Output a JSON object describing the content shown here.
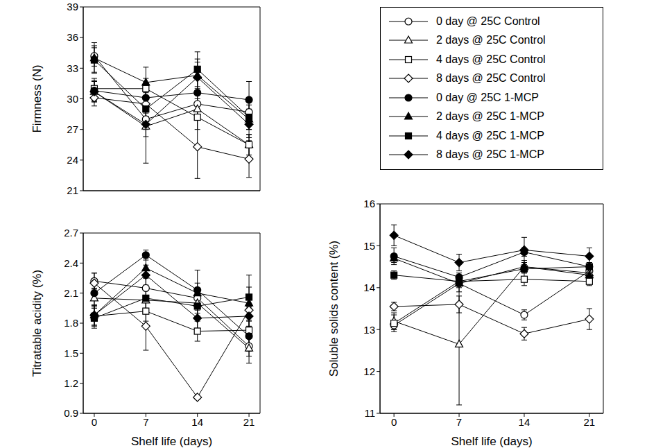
{
  "chart_data": [
    {
      "type": "line",
      "y_label": "Firmness (N)",
      "x": [
        0,
        7,
        14,
        21
      ],
      "xlim": [
        -1.5,
        22.5
      ],
      "xticks": [
        0,
        7,
        14,
        21
      ],
      "ylim": [
        21,
        39
      ],
      "yticks": [
        21,
        24,
        27,
        30,
        33,
        36,
        39
      ],
      "tick_labels": "y",
      "series": [
        {
          "name": "0 day @ 25C Control",
          "color": "#000000",
          "marker": "open_circle",
          "values": [
            34.2,
            28.0,
            29.5,
            28.7
          ],
          "errors": [
            1.0,
            1.0,
            1.5,
            1.0
          ]
        },
        {
          "name": "2 days @ 25C Control",
          "color": "#000000",
          "marker": "open_triangle",
          "values": [
            30.7,
            27.3,
            29.0,
            25.5
          ],
          "errors": [
            1.0,
            1.0,
            1.0,
            1.0
          ]
        },
        {
          "name": "4 days @ 25C Control",
          "color": "#000000",
          "marker": "open_square",
          "values": [
            31.0,
            31.0,
            28.2,
            25.5
          ],
          "errors": [
            1.0,
            1.0,
            1.2,
            1.0
          ]
        },
        {
          "name": "8 days @ 25C Control",
          "color": "#000000",
          "marker": "open_diamond",
          "values": [
            30.1,
            29.5,
            25.3,
            24.1
          ],
          "errors": [
            0.8,
            1.2,
            3.1,
            1.8
          ]
        },
        {
          "name": "0 day @ 25C 1-MCP",
          "color": "#000000",
          "marker": "filled_circle",
          "values": [
            30.8,
            30.1,
            30.6,
            29.9
          ],
          "errors": [
            1.0,
            1.5,
            1.3,
            1.8
          ]
        },
        {
          "name": "2 days @ 25C 1-MCP",
          "color": "#000000",
          "marker": "filled_triangle",
          "values": [
            34.0,
            31.6,
            32.3,
            28.0
          ],
          "errors": [
            1.5,
            1.5,
            1.6,
            1.0
          ]
        },
        {
          "name": "4 days @ 25C 1-MCP",
          "color": "#000000",
          "marker": "filled_square",
          "values": [
            33.8,
            29.0,
            32.9,
            28.2
          ],
          "errors": [
            1.2,
            1.6,
            1.7,
            1.2
          ]
        },
        {
          "name": "8 days @ 25C 1-MCP",
          "color": "#000000",
          "marker": "filled_diamond",
          "values": [
            30.7,
            27.5,
            32.1,
            27.5
          ],
          "errors": [
            1.0,
            3.8,
            1.5,
            1.3
          ]
        }
      ]
    },
    {
      "type": "line",
      "y_label": "Titratable acidity (%)",
      "x_label": "Shelf life (days)",
      "x": [
        0,
        7,
        14,
        21
      ],
      "xlim": [
        -1.5,
        22.5
      ],
      "xticks": [
        0,
        7,
        14,
        21
      ],
      "ylim": [
        0.9,
        2.7
      ],
      "yticks": [
        0.9,
        1.2,
        1.5,
        1.8,
        2.1,
        2.4,
        2.7
      ],
      "series": [
        {
          "name": "0 day @ 25C Control",
          "color": "#000000",
          "marker": "open_circle",
          "values": [
            2.22,
            2.15,
            2.05,
            1.57
          ],
          "errors": [
            0.08,
            0.1,
            0.1,
            0.1
          ]
        },
        {
          "name": "2 days @ 25C Control",
          "color": "#000000",
          "marker": "open_triangle",
          "values": [
            2.05,
            2.03,
            2.0,
            1.55
          ],
          "errors": [
            0.1,
            0.1,
            0.1,
            0.15
          ]
        },
        {
          "name": "4 days @ 25C Control",
          "color": "#000000",
          "marker": "open_square",
          "values": [
            1.87,
            1.92,
            1.72,
            1.73
          ],
          "errors": [
            0.1,
            0.1,
            0.1,
            0.15
          ]
        },
        {
          "name": "8 days @ 25C Control",
          "color": "#000000",
          "marker": "open_diamond",
          "values": [
            2.2,
            1.77,
            1.06,
            1.93
          ],
          "errors": [
            0.1,
            0.24,
            0.02,
            0.1
          ]
        },
        {
          "name": "0 day @ 25C 1-MCP",
          "color": "#000000",
          "marker": "filled_circle",
          "values": [
            2.1,
            2.48,
            2.13,
            1.67
          ],
          "errors": [
            0.12,
            0.05,
            0.2,
            0.15
          ]
        },
        {
          "name": "2 days @ 25C 1-MCP",
          "color": "#000000",
          "marker": "filled_triangle",
          "values": [
            1.88,
            2.35,
            2.1,
            2.0
          ],
          "errors": [
            0.1,
            0.1,
            0.1,
            0.28
          ]
        },
        {
          "name": "4 days @ 25C 1-MCP",
          "color": "#000000",
          "marker": "filled_square",
          "values": [
            1.85,
            2.05,
            1.97,
            2.06
          ],
          "errors": [
            0.1,
            0.1,
            0.1,
            0.1
          ]
        },
        {
          "name": "8 days @ 25C 1-MCP",
          "color": "#000000",
          "marker": "filled_diamond",
          "values": [
            1.88,
            2.28,
            1.85,
            1.87
          ],
          "errors": [
            0.1,
            0.1,
            0.1,
            0.1
          ]
        }
      ]
    },
    {
      "type": "line",
      "y_label": "Soluble solids content (%)",
      "x_label": "Shelf life (days)",
      "x": [
        0,
        7,
        14,
        21
      ],
      "xlim": [
        -1.5,
        22.5
      ],
      "xticks": [
        0,
        7,
        14,
        21
      ],
      "ylim": [
        11,
        16
      ],
      "yticks": [
        11,
        12,
        13,
        14,
        15,
        16
      ],
      "series": [
        {
          "name": "0 day @ 25C Control",
          "color": "#000000",
          "marker": "open_circle",
          "values": [
            13.1,
            14.1,
            13.35,
            14.4
          ],
          "errors": [
            0.1,
            0.1,
            0.12,
            0.1
          ]
        },
        {
          "name": "2 days @ 25C Control",
          "color": "#000000",
          "marker": "open_triangle",
          "values": [
            13.2,
            12.65,
            14.5,
            14.35
          ],
          "errors": [
            0.2,
            1.45,
            0.15,
            0.15
          ]
        },
        {
          "name": "4 days @ 25C Control",
          "color": "#000000",
          "marker": "open_square",
          "values": [
            13.15,
            14.15,
            14.2,
            14.15
          ],
          "errors": [
            0.2,
            0.1,
            0.15,
            0.1
          ]
        },
        {
          "name": "8 days @ 25C Control",
          "color": "#000000",
          "marker": "open_diamond",
          "values": [
            13.55,
            13.6,
            12.9,
            13.25
          ],
          "errors": [
            0.1,
            0.2,
            0.15,
            0.25
          ]
        },
        {
          "name": "0 day @ 25C 1-MCP",
          "color": "#000000",
          "marker": "filled_circle",
          "values": [
            14.75,
            14.25,
            14.85,
            14.5
          ],
          "errors": [
            0.2,
            0.1,
            0.1,
            0.1
          ]
        },
        {
          "name": "2 days @ 25C 1-MCP",
          "color": "#000000",
          "marker": "filled_triangle",
          "values": [
            14.7,
            14.1,
            14.5,
            14.3
          ],
          "errors": [
            0.1,
            0.2,
            0.1,
            0.1
          ]
        },
        {
          "name": "4 days @ 25C 1-MCP",
          "color": "#000000",
          "marker": "filled_square",
          "values": [
            14.3,
            14.15,
            14.45,
            14.5
          ],
          "errors": [
            0.1,
            0.1,
            0.1,
            0.1
          ]
        },
        {
          "name": "8 days @ 25C 1-MCP",
          "color": "#000000",
          "marker": "filled_diamond",
          "values": [
            15.25,
            14.6,
            14.9,
            14.75
          ],
          "errors": [
            0.25,
            0.2,
            0.3,
            0.2
          ]
        }
      ]
    }
  ]
}
